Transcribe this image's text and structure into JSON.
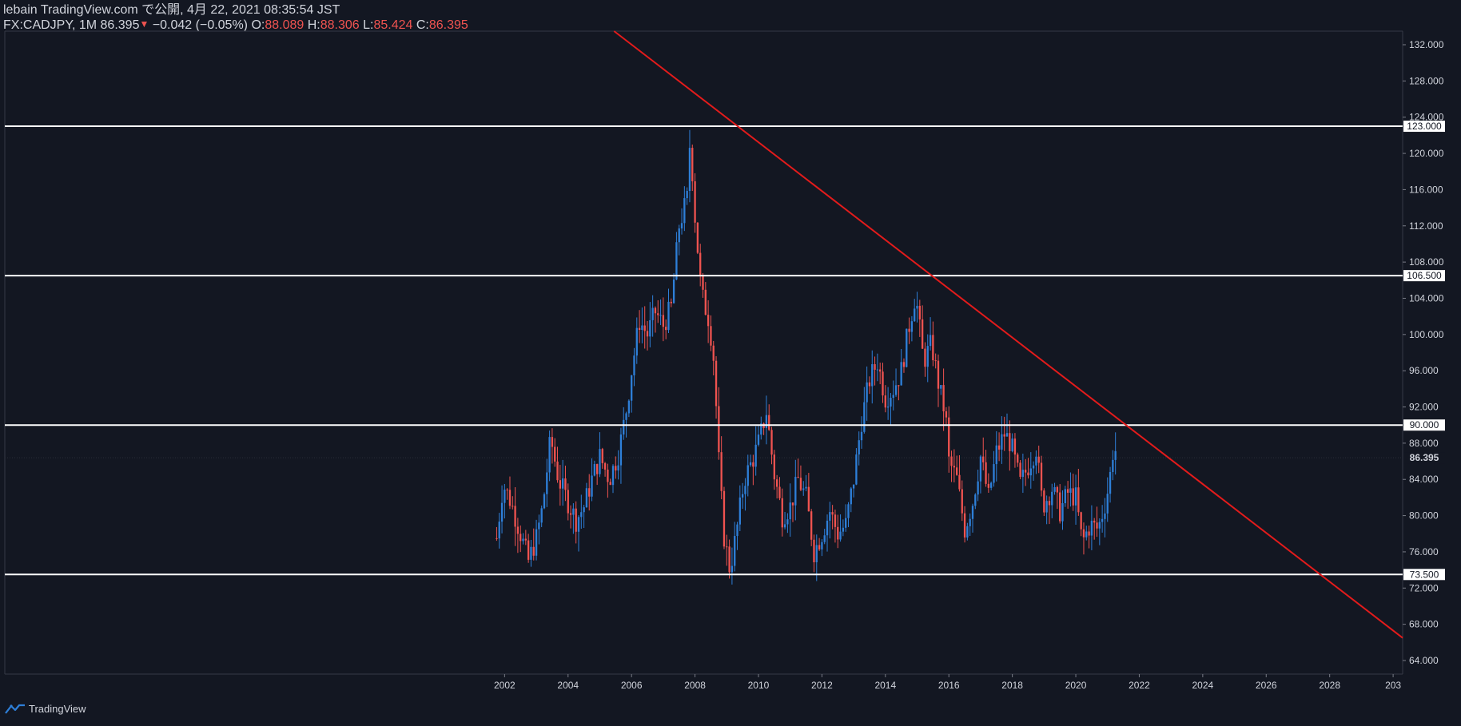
{
  "header": {
    "publish_line": "lebain TradingView.com で公開, 4月 22, 2021 08:35:54 JST",
    "symbol": "FX:CADJPY, 1M",
    "last": "86.395",
    "arrow": "▼",
    "change": "−0.042 (−0.05%)",
    "o_label": "O:",
    "o_value": "88.089",
    "h_label": "H:",
    "h_value": "88.306",
    "l_label": "L:",
    "l_value": "85.424",
    "c_label": "C:",
    "c_value": "86.395"
  },
  "footer": {
    "brand": "TradingView",
    "logo_icon": "tradingview-logo-icon"
  },
  "colors": {
    "background": "#131722",
    "up": "#2e7fd8",
    "down": "#ef5350",
    "trendline": "#e31b1b",
    "level": "#ffffff",
    "axis_text": "#d1d4dc"
  },
  "chart_data": {
    "type": "candlestick",
    "symbol": "FX:CADJPY",
    "interval": "1M",
    "x_ticks": [
      "2002",
      "2004",
      "2006",
      "2008",
      "2010",
      "2012",
      "2014",
      "2016",
      "2018",
      "2020",
      "2022",
      "2024",
      "2026",
      "2028",
      "203"
    ],
    "y_ticks": [
      "132.000",
      "128.000",
      "124.000",
      "120.000",
      "116.000",
      "112.000",
      "108.000",
      "104.000",
      "100.000",
      "96.000",
      "92.000",
      "88.000",
      "84.000",
      "80.000",
      "76.000",
      "72.000",
      "68.000",
      "64.000"
    ],
    "ylim": [
      62.5,
      133.5
    ],
    "xlim": [
      1986.25,
      2030.3
    ],
    "horizontal_levels": [
      {
        "value": 123.0,
        "label": "123.000"
      },
      {
        "value": 106.5,
        "label": "106.500"
      },
      {
        "value": 90.0,
        "label": "90.000"
      },
      {
        "value": 73.5,
        "label": "73.500"
      }
    ],
    "last_price": {
      "value": 86.395,
      "label": "86.395"
    },
    "trendline": {
      "x1": 2005.45,
      "y1": 133.5,
      "x2": 2030.3,
      "y2": 66.5
    },
    "price_path": [
      [
        2001.75,
        77.5
      ],
      [
        2001.95,
        83.5
      ],
      [
        2002.2,
        81.5
      ],
      [
        2002.5,
        78.0
      ],
      [
        2002.75,
        75.0
      ],
      [
        2003.0,
        77.5
      ],
      [
        2003.2,
        81.0
      ],
      [
        2003.45,
        88.5
      ],
      [
        2003.7,
        84.0
      ],
      [
        2004.0,
        81.5
      ],
      [
        2004.25,
        79.5
      ],
      [
        2004.5,
        81.0
      ],
      [
        2004.75,
        84.0
      ],
      [
        2005.0,
        86.5
      ],
      [
        2005.3,
        84.0
      ],
      [
        2005.6,
        87.0
      ],
      [
        2005.85,
        92.0
      ],
      [
        2006.0,
        96.0
      ],
      [
        2006.25,
        101.5
      ],
      [
        2006.5,
        100.0
      ],
      [
        2006.75,
        102.5
      ],
      [
        2007.0,
        101.0
      ],
      [
        2007.25,
        103.0
      ],
      [
        2007.5,
        112.0
      ],
      [
        2007.75,
        115.0
      ],
      [
        2007.85,
        122.0
      ],
      [
        2008.0,
        113.0
      ],
      [
        2008.2,
        104.5
      ],
      [
        2008.45,
        101.5
      ],
      [
        2008.6,
        97.0
      ],
      [
        2008.75,
        86.0
      ],
      [
        2008.9,
        78.0
      ],
      [
        2009.1,
        74.0
      ],
      [
        2009.3,
        78.0
      ],
      [
        2009.55,
        84.0
      ],
      [
        2009.8,
        86.0
      ],
      [
        2010.0,
        88.0
      ],
      [
        2010.25,
        91.5
      ],
      [
        2010.5,
        84.5
      ],
      [
        2010.75,
        80.0
      ],
      [
        2011.0,
        81.0
      ],
      [
        2011.25,
        84.0
      ],
      [
        2011.5,
        82.0
      ],
      [
        2011.75,
        76.0
      ],
      [
        2012.0,
        78.0
      ],
      [
        2012.25,
        80.5
      ],
      [
        2012.5,
        78.0
      ],
      [
        2012.75,
        79.0
      ],
      [
        2013.0,
        84.0
      ],
      [
        2013.25,
        90.5
      ],
      [
        2013.5,
        95.0
      ],
      [
        2013.75,
        97.0
      ],
      [
        2014.0,
        93.0
      ],
      [
        2014.25,
        94.0
      ],
      [
        2014.5,
        96.0
      ],
      [
        2014.75,
        101.0
      ],
      [
        2014.95,
        104.5
      ],
      [
        2015.2,
        97.0
      ],
      [
        2015.45,
        99.0
      ],
      [
        2015.7,
        94.0
      ],
      [
        2015.9,
        91.0
      ],
      [
        2016.0,
        86.0
      ],
      [
        2016.25,
        84.0
      ],
      [
        2016.5,
        78.5
      ],
      [
        2016.75,
        81.5
      ],
      [
        2017.0,
        86.5
      ],
      [
        2017.25,
        82.0
      ],
      [
        2017.5,
        87.0
      ],
      [
        2017.75,
        89.0
      ],
      [
        2017.95,
        88.0
      ],
      [
        2018.25,
        83.5
      ],
      [
        2018.5,
        85.5
      ],
      [
        2018.75,
        87.5
      ],
      [
        2018.95,
        81.0
      ],
      [
        2019.25,
        83.0
      ],
      [
        2019.5,
        80.5
      ],
      [
        2019.75,
        82.5
      ],
      [
        2020.0,
        82.0
      ],
      [
        2020.2,
        77.0
      ],
      [
        2020.45,
        79.0
      ],
      [
        2020.7,
        78.5
      ],
      [
        2020.9,
        81.0
      ],
      [
        2021.05,
        83.5
      ],
      [
        2021.2,
        88.0
      ],
      [
        2021.3,
        86.4
      ]
    ]
  }
}
